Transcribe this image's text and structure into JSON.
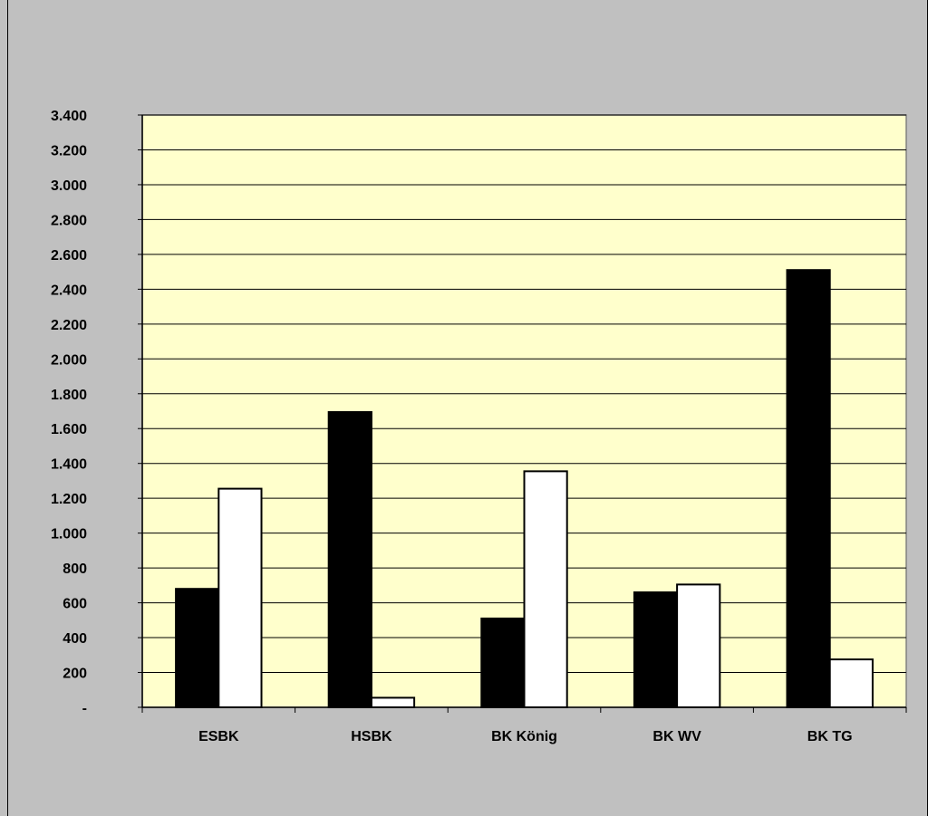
{
  "chart_data": {
    "type": "bar",
    "categories": [
      "ESBK",
      "HSBK",
      "BK König",
      "BK WV",
      "BK TG"
    ],
    "series": [
      {
        "values": [
          680,
          1695,
          510,
          660,
          2510
        ],
        "color": "#000000"
      },
      {
        "values": [
          1255,
          55,
          1355,
          705,
          275
        ],
        "color": "#ffffff"
      }
    ],
    "ylim": [
      0,
      3400
    ],
    "yticks": [
      0,
      200,
      400,
      600,
      800,
      1000,
      1200,
      1400,
      1600,
      1800,
      2000,
      2200,
      2400,
      2600,
      2800,
      3000,
      3200,
      3400
    ],
    "ytick_labels": [
      "-",
      "200",
      "400",
      "600",
      "800",
      "1.000",
      "1.200",
      "1.400",
      "1.600",
      "1.800",
      "2.000",
      "2.200",
      "2.400",
      "2.600",
      "2.800",
      "3.000",
      "3.200",
      "3.400"
    ],
    "title": "",
    "xlabel": "",
    "ylabel": "",
    "grid": true,
    "legend": "none",
    "plot_background": "#ffffcc",
    "chart_background": "#c0c0c0"
  }
}
